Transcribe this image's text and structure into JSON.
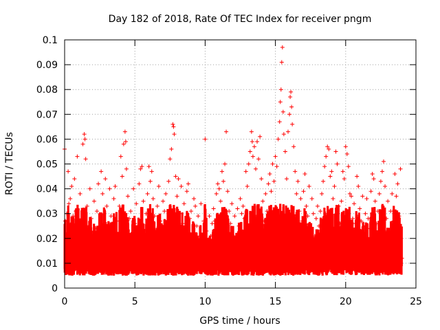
{
  "chart_data": {
    "type": "scatter",
    "title": "Day 182 of 2018, Rate Of TEC Index for receiver pngm",
    "xlabel": "GPS time / hours",
    "ylabel": "ROTI / TECUs",
    "xlim": [
      0,
      25
    ],
    "ylim": [
      0,
      0.1
    ],
    "x_ticks": [
      0,
      5,
      10,
      15,
      20,
      25
    ],
    "x_tick_labels": [
      "0",
      "5",
      "10",
      "15",
      "20",
      "25"
    ],
    "y_ticks": [
      0,
      0.01,
      0.02,
      0.03,
      0.04,
      0.05,
      0.06,
      0.07,
      0.08,
      0.09,
      0.1
    ],
    "y_tick_labels": [
      "0",
      "0.01",
      "0.02",
      "0.03",
      "0.04",
      "0.05",
      "0.06",
      "0.07",
      "0.08",
      "0.09",
      "0.1"
    ],
    "grid": true,
    "marker": "+",
    "marker_color": "#ff0000",
    "grid_color": "#a0a0a0",
    "series": [
      {
        "name": "ROTI",
        "points": [
          [
            0.0,
            0.056
          ],
          [
            0.05,
            0.027
          ],
          [
            0.1,
            0.012
          ],
          [
            0.15,
            0.03
          ],
          [
            0.2,
            0.019
          ],
          [
            0.25,
            0.047
          ],
          [
            0.3,
            0.034
          ],
          [
            0.35,
            0.015
          ],
          [
            0.4,
            0.036
          ],
          [
            0.45,
            0.022
          ],
          [
            0.5,
            0.041
          ],
          [
            0.55,
            0.009
          ],
          [
            0.6,
            0.029
          ],
          [
            0.7,
            0.044
          ],
          [
            0.8,
            0.031
          ],
          [
            0.9,
            0.053
          ],
          [
            1.0,
            0.026
          ],
          [
            1.1,
            0.038
          ],
          [
            1.2,
            0.017
          ],
          [
            1.3,
            0.058
          ],
          [
            1.4,
            0.062
          ],
          [
            1.45,
            0.06
          ],
          [
            1.5,
            0.052
          ],
          [
            1.6,
            0.033
          ],
          [
            1.7,
            0.021
          ],
          [
            1.8,
            0.04
          ],
          [
            1.9,
            0.028
          ],
          [
            2.0,
            0.015
          ],
          [
            2.1,
            0.035
          ],
          [
            2.2,
            0.024
          ],
          [
            2.3,
            0.031
          ],
          [
            2.4,
            0.042
          ],
          [
            2.5,
            0.019
          ],
          [
            2.6,
            0.047
          ],
          [
            2.7,
            0.038
          ],
          [
            2.8,
            0.026
          ],
          [
            2.9,
            0.044
          ],
          [
            3.0,
            0.033
          ],
          [
            3.1,
            0.018
          ],
          [
            3.2,
            0.04
          ],
          [
            3.3,
            0.029
          ],
          [
            3.4,
            0.022
          ],
          [
            3.5,
            0.036
          ],
          [
            3.6,
            0.041
          ],
          [
            3.7,
            0.027
          ],
          [
            3.8,
            0.015
          ],
          [
            3.9,
            0.033
          ],
          [
            4.0,
            0.053
          ],
          [
            4.1,
            0.045
          ],
          [
            4.2,
            0.058
          ],
          [
            4.3,
            0.063
          ],
          [
            4.35,
            0.059
          ],
          [
            4.4,
            0.048
          ],
          [
            4.5,
            0.037
          ],
          [
            4.6,
            0.028
          ],
          [
            4.7,
            0.031
          ],
          [
            4.8,
            0.02
          ],
          [
            4.9,
            0.04
          ],
          [
            5.0,
            0.026
          ],
          [
            5.1,
            0.034
          ],
          [
            5.2,
            0.018
          ],
          [
            5.3,
            0.042
          ],
          [
            5.4,
            0.048
          ],
          [
            5.5,
            0.049
          ],
          [
            5.6,
            0.035
          ],
          [
            5.7,
            0.023
          ],
          [
            5.8,
            0.03
          ],
          [
            5.9,
            0.038
          ],
          [
            6.0,
            0.049
          ],
          [
            6.1,
            0.043
          ],
          [
            6.2,
            0.047
          ],
          [
            6.3,
            0.036
          ],
          [
            6.4,
            0.029
          ],
          [
            6.5,
            0.022
          ],
          [
            6.6,
            0.033
          ],
          [
            6.7,
            0.041
          ],
          [
            6.8,
            0.027
          ],
          [
            6.9,
            0.019
          ],
          [
            7.0,
            0.035
          ],
          [
            7.1,
            0.031
          ],
          [
            7.2,
            0.038
          ],
          [
            7.3,
            0.024
          ],
          [
            7.4,
            0.043
          ],
          [
            7.5,
            0.052
          ],
          [
            7.6,
            0.056
          ],
          [
            7.7,
            0.066
          ],
          [
            7.75,
            0.065
          ],
          [
            7.8,
            0.062
          ],
          [
            7.9,
            0.045
          ],
          [
            8.0,
            0.037
          ],
          [
            8.1,
            0.044
          ],
          [
            8.2,
            0.03
          ],
          [
            8.3,
            0.041
          ],
          [
            8.4,
            0.026
          ],
          [
            8.5,
            0.034
          ],
          [
            8.6,
            0.022
          ],
          [
            8.7,
            0.039
          ],
          [
            8.8,
            0.042
          ],
          [
            8.9,
            0.028
          ],
          [
            9.0,
            0.031
          ],
          [
            9.1,
            0.019
          ],
          [
            9.2,
            0.036
          ],
          [
            9.3,
            0.033
          ],
          [
            9.4,
            0.025
          ],
          [
            9.5,
            0.029
          ],
          [
            9.6,
            0.021
          ],
          [
            9.7,
            0.034
          ],
          [
            9.8,
            0.016
          ],
          [
            9.9,
            0.027
          ],
          [
            10.0,
            0.06
          ],
          [
            10.1,
            0.023
          ],
          [
            10.2,
            0.018
          ],
          [
            10.3,
            0.029
          ],
          [
            10.4,
            0.021
          ],
          [
            10.5,
            0.026
          ],
          [
            10.6,
            0.032
          ],
          [
            10.7,
            0.027
          ],
          [
            10.8,
            0.038
          ],
          [
            10.9,
            0.042
          ],
          [
            11.0,
            0.04
          ],
          [
            11.1,
            0.035
          ],
          [
            11.2,
            0.047
          ],
          [
            11.3,
            0.043
          ],
          [
            11.4,
            0.05
          ],
          [
            11.5,
            0.063
          ],
          [
            11.6,
            0.039
          ],
          [
            11.7,
            0.031
          ],
          [
            11.8,
            0.026
          ],
          [
            11.9,
            0.034
          ],
          [
            12.0,
            0.021
          ],
          [
            12.1,
            0.029
          ],
          [
            12.2,
            0.018
          ],
          [
            12.3,
            0.032
          ],
          [
            12.4,
            0.025
          ],
          [
            12.5,
            0.036
          ],
          [
            12.6,
            0.03
          ],
          [
            12.7,
            0.033
          ],
          [
            12.8,
            0.028
          ],
          [
            12.9,
            0.047
          ],
          [
            13.0,
            0.041
          ],
          [
            13.1,
            0.05
          ],
          [
            13.2,
            0.055
          ],
          [
            13.3,
            0.063
          ],
          [
            13.35,
            0.059
          ],
          [
            13.4,
            0.053
          ],
          [
            13.5,
            0.057
          ],
          [
            13.6,
            0.048
          ],
          [
            13.7,
            0.059
          ],
          [
            13.8,
            0.052
          ],
          [
            13.9,
            0.061
          ],
          [
            14.0,
            0.044
          ],
          [
            14.1,
            0.035
          ],
          [
            14.2,
            0.027
          ],
          [
            14.3,
            0.038
          ],
          [
            14.4,
            0.031
          ],
          [
            14.5,
            0.042
          ],
          [
            14.6,
            0.046
          ],
          [
            14.7,
            0.039
          ],
          [
            14.8,
            0.05
          ],
          [
            14.9,
            0.043
          ],
          [
            15.0,
            0.053
          ],
          [
            15.1,
            0.049
          ],
          [
            15.2,
            0.06
          ],
          [
            15.3,
            0.067
          ],
          [
            15.35,
            0.075
          ],
          [
            15.4,
            0.08
          ],
          [
            15.45,
            0.091
          ],
          [
            15.5,
            0.097
          ],
          [
            15.55,
            0.071
          ],
          [
            15.6,
            0.062
          ],
          [
            15.7,
            0.055
          ],
          [
            15.8,
            0.044
          ],
          [
            15.9,
            0.063
          ],
          [
            16.0,
            0.07
          ],
          [
            16.05,
            0.077
          ],
          [
            16.1,
            0.079
          ],
          [
            16.15,
            0.073
          ],
          [
            16.2,
            0.066
          ],
          [
            16.3,
            0.057
          ],
          [
            16.4,
            0.047
          ],
          [
            16.5,
            0.038
          ],
          [
            16.6,
            0.043
          ],
          [
            16.7,
            0.031
          ],
          [
            16.8,
            0.036
          ],
          [
            16.9,
            0.027
          ],
          [
            17.0,
            0.039
          ],
          [
            17.1,
            0.046
          ],
          [
            17.2,
            0.033
          ],
          [
            17.3,
            0.029
          ],
          [
            17.4,
            0.041
          ],
          [
            17.5,
            0.024
          ],
          [
            17.6,
            0.036
          ],
          [
            17.7,
            0.03
          ],
          [
            17.8,
            0.021
          ],
          [
            17.9,
            0.028
          ],
          [
            18.0,
            0.033
          ],
          [
            18.1,
            0.025
          ],
          [
            18.2,
            0.031
          ],
          [
            18.3,
            0.038
          ],
          [
            18.4,
            0.043
          ],
          [
            18.5,
            0.049
          ],
          [
            18.6,
            0.053
          ],
          [
            18.7,
            0.057
          ],
          [
            18.8,
            0.056
          ],
          [
            18.9,
            0.045
          ],
          [
            19.0,
            0.047
          ],
          [
            19.1,
            0.036
          ],
          [
            19.2,
            0.041
          ],
          [
            19.3,
            0.055
          ],
          [
            19.4,
            0.05
          ],
          [
            19.5,
            0.033
          ],
          [
            19.6,
            0.026
          ],
          [
            19.7,
            0.035
          ],
          [
            19.8,
            0.047
          ],
          [
            19.9,
            0.044
          ],
          [
            20.0,
            0.057
          ],
          [
            20.1,
            0.054
          ],
          [
            20.2,
            0.049
          ],
          [
            20.3,
            0.038
          ],
          [
            20.4,
            0.037
          ],
          [
            20.5,
            0.028
          ],
          [
            20.6,
            0.034
          ],
          [
            20.7,
            0.026
          ],
          [
            20.8,
            0.045
          ],
          [
            20.9,
            0.041
          ],
          [
            21.0,
            0.032
          ],
          [
            21.1,
            0.027
          ],
          [
            21.2,
            0.037
          ],
          [
            21.3,
            0.022
          ],
          [
            21.4,
            0.03
          ],
          [
            21.5,
            0.036
          ],
          [
            21.6,
            0.028
          ],
          [
            21.7,
            0.024
          ],
          [
            21.8,
            0.039
          ],
          [
            21.9,
            0.046
          ],
          [
            22.0,
            0.044
          ],
          [
            22.1,
            0.035
          ],
          [
            22.2,
            0.026
          ],
          [
            22.3,
            0.031
          ],
          [
            22.4,
            0.038
          ],
          [
            22.5,
            0.043
          ],
          [
            22.6,
            0.047
          ],
          [
            22.7,
            0.051
          ],
          [
            22.8,
            0.041
          ],
          [
            22.9,
            0.028
          ],
          [
            23.0,
            0.035
          ],
          [
            23.1,
            0.023
          ],
          [
            23.2,
            0.031
          ],
          [
            23.3,
            0.038
          ],
          [
            23.4,
            0.027
          ],
          [
            23.5,
            0.046
          ],
          [
            23.6,
            0.037
          ],
          [
            23.7,
            0.042
          ],
          [
            23.8,
            0.029
          ],
          [
            23.9,
            0.048
          ],
          [
            24.0,
            0.012
          ]
        ]
      }
    ]
  }
}
